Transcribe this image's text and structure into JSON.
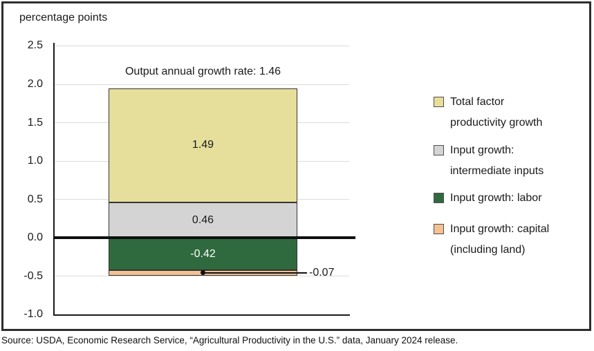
{
  "chart_data": {
    "type": "bar",
    "variant": "single-stacked-bar",
    "unit_label": "percentage points",
    "annotation": "Output annual growth rate: 1.46",
    "output_annual_growth_rate": 1.46,
    "ylim": [
      -1.0,
      2.5
    ],
    "grid": true,
    "ytick_values": [
      2.5,
      2.0,
      1.5,
      1.0,
      0.5,
      0.0,
      -0.5,
      -1.0
    ],
    "ytick_labels": [
      "2.5",
      "2.0",
      "1.5",
      "1.0",
      "0.5",
      "0.0",
      "-0.5",
      "-1.0"
    ],
    "series": [
      {
        "name": "Total factor productivity growth",
        "value": 1.49,
        "label": "1.49",
        "color": "#e6df9b",
        "label_color": "#1a1a1a"
      },
      {
        "name": "Input growth: intermediate inputs",
        "value": 0.46,
        "label": "0.46",
        "color": "#d4d4d4",
        "label_color": "#1a1a1a"
      },
      {
        "name": "Input growth: labor",
        "value": -0.42,
        "label": "-0.42",
        "color": "#2f6a3e",
        "label_color": "#ffffff"
      },
      {
        "name": "Input growth: capital (including land)",
        "value": -0.07,
        "label": "-0.07",
        "color": "#f5c192",
        "label_color": "#1a1a1a",
        "label_outside": true
      }
    ],
    "legend": {
      "position": "right",
      "items": [
        {
          "lines": [
            "Total factor",
            "productivity growth"
          ],
          "color": "#e6df9b"
        },
        {
          "lines": [
            "Input growth:",
            "intermediate inputs"
          ],
          "color": "#d4d4d4"
        },
        {
          "lines": [
            "Input growth: labor"
          ],
          "color": "#2f6a3e"
        },
        {
          "lines": [
            "Input growth: capital",
            "(including land)"
          ],
          "color": "#f5c192"
        }
      ]
    }
  },
  "source_note": "Source: USDA, Economic Research Service, “Agricultural Productivity in the U.S.” data, January 2024 release."
}
